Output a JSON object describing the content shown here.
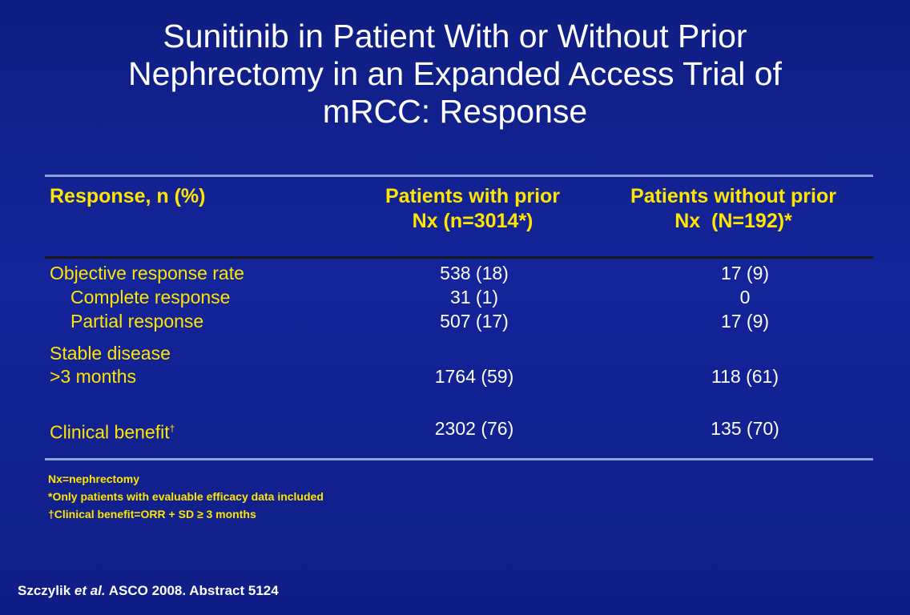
{
  "title": {
    "line1": "Sunitinib in Patient With or Without Prior",
    "line2": "Nephrectomy in an Expanded Access Trial of",
    "line3": "mRCC: Response"
  },
  "table": {
    "headers": {
      "col0": "Response, n (%)",
      "col1_line1": "Patients with prior",
      "col1_line2": "Nx (n=3014*)",
      "col2_line1": "Patients without prior",
      "col2_line2": "Nx  (N=192)*"
    },
    "rows": {
      "orr": {
        "label": "Objective response rate",
        "with": "538 (18)",
        "without": "17 (9)"
      },
      "cr": {
        "label": "Complete response",
        "with": "31 (1)",
        "without": "0"
      },
      "pr": {
        "label": "Partial response",
        "with": "507 (17)",
        "without": "17 (9)"
      },
      "sd": {
        "label_line1": "Stable disease",
        "label_line2": ">3 months",
        "with": "1764 (59)",
        "without": "118 (61)"
      },
      "cb": {
        "label": "Clinical benefit",
        "label_mark": "†",
        "with": "2302 (76)",
        "without": "135 (70)"
      }
    }
  },
  "footnotes": {
    "f1": "Nx=nephrectomy",
    "f2": "*Only patients with evaluable efficacy data included",
    "f3": "†Clinical benefit=ORR + SD ≥ 3 months"
  },
  "citation": {
    "authors": "Szczylik",
    "etal": "et al.",
    "rest": " ASCO 2008. Abstract 5124"
  }
}
